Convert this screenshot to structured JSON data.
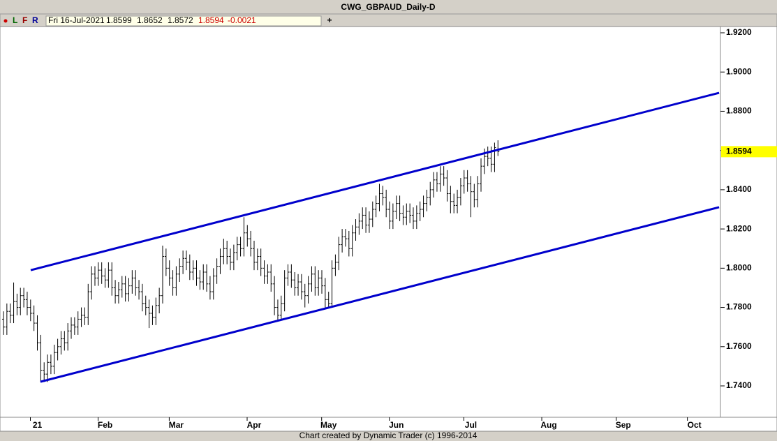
{
  "window_title": "CWG_GBPAUD_Daily-D",
  "toolbar": {
    "buttons": [
      "L",
      "F",
      "R"
    ],
    "info": {
      "date": "Fri 16-Jul-2021",
      "open": "1.8599",
      "high": "1.8652",
      "low": "1.8572",
      "close": "1.8594",
      "change": "-0.0021"
    },
    "plus": "+"
  },
  "footer": "Chart created by Dynamic Trader  (c) 1996-2014",
  "chart_data": {
    "type": "ohlc",
    "color": "#000000",
    "x": [
      0,
      1,
      2,
      3,
      4,
      5,
      6,
      7,
      8,
      9,
      10,
      11,
      12,
      13,
      14,
      15,
      16,
      17,
      18,
      19,
      20,
      21,
      22,
      23,
      24,
      25,
      26,
      27,
      28,
      29,
      30,
      31,
      32,
      33,
      34,
      35,
      36,
      37,
      38,
      39,
      40,
      41,
      42,
      43,
      44,
      45,
      46,
      47,
      48,
      49,
      50,
      51,
      52,
      53,
      54,
      55,
      56,
      57,
      58,
      59,
      60,
      61,
      62,
      63,
      64,
      65,
      66,
      67,
      68,
      69,
      70,
      71,
      72,
      73,
      74,
      75,
      76,
      77,
      78,
      79,
      80,
      81,
      82,
      83,
      84,
      85,
      86,
      87,
      88,
      89,
      90,
      91,
      92,
      93,
      94,
      95,
      96,
      97,
      98,
      99,
      100,
      101,
      102,
      103,
      104,
      105,
      106,
      107,
      108,
      109,
      110,
      111,
      112,
      113,
      114,
      115,
      116,
      117,
      118,
      119,
      120,
      121,
      122,
      123,
      124,
      125,
      126,
      127,
      128,
      129,
      130,
      131,
      132,
      133,
      134,
      135,
      136,
      137,
      138,
      139,
      140,
      141,
      142,
      143,
      144,
      145,
      146
    ],
    "open": [
      1.774,
      1.77,
      1.778,
      1.776,
      1.783,
      1.78,
      1.786,
      1.784,
      1.78,
      1.777,
      1.772,
      1.762,
      1.748,
      1.746,
      1.752,
      1.75,
      1.757,
      1.76,
      1.764,
      1.762,
      1.768,
      1.771,
      1.77,
      1.774,
      1.776,
      1.775,
      1.788,
      1.797,
      1.795,
      1.799,
      1.796,
      1.794,
      1.799,
      1.79,
      1.786,
      1.789,
      1.792,
      1.787,
      1.791,
      1.795,
      1.79,
      1.788,
      1.782,
      1.78,
      1.777,
      1.775,
      1.781,
      1.786,
      1.806,
      1.8,
      1.795,
      1.79,
      1.797,
      1.801,
      1.805,
      1.803,
      1.798,
      1.8,
      1.795,
      1.793,
      1.798,
      1.792,
      1.788,
      1.796,
      1.801,
      1.806,
      1.81,
      1.806,
      1.803,
      1.808,
      1.812,
      1.81,
      1.818,
      1.815,
      1.81,
      1.803,
      1.806,
      1.8,
      1.796,
      1.798,
      1.792,
      1.78,
      1.776,
      1.782,
      1.795,
      1.798,
      1.794,
      1.79,
      1.793,
      1.788,
      1.786,
      1.792,
      1.797,
      1.79,
      1.795,
      1.791,
      1.784,
      1.782,
      1.8,
      1.803,
      1.812,
      1.816,
      1.815,
      1.81,
      1.818,
      1.821,
      1.824,
      1.827,
      1.822,
      1.825,
      1.83,
      1.833,
      1.838,
      1.836,
      1.83,
      1.824,
      1.829,
      1.833,
      1.828,
      1.826,
      1.829,
      1.827,
      1.824,
      1.828,
      1.83,
      1.833,
      1.836,
      1.84,
      1.845,
      1.843,
      1.848,
      1.846,
      1.838,
      1.834,
      1.832,
      1.836,
      1.842,
      1.846,
      1.843,
      1.839,
      1.835,
      1.843,
      1.852,
      1.857,
      1.856,
      1.853,
      1.8599
    ],
    "high": [
      1.778,
      1.782,
      1.782,
      1.7927,
      1.787,
      1.79,
      1.79,
      1.788,
      1.784,
      1.781,
      1.776,
      1.766,
      1.752,
      1.756,
      1.756,
      1.761,
      1.764,
      1.768,
      1.768,
      1.772,
      1.775,
      1.775,
      1.778,
      1.78,
      1.78,
      1.792,
      1.801,
      1.801,
      1.803,
      1.803,
      1.8,
      1.803,
      1.803,
      1.794,
      1.793,
      1.796,
      1.796,
      1.795,
      1.799,
      1.799,
      1.794,
      1.792,
      1.786,
      1.784,
      1.781,
      1.785,
      1.79,
      1.8115,
      1.81,
      1.804,
      1.799,
      1.801,
      1.805,
      1.809,
      1.809,
      1.807,
      1.804,
      1.804,
      1.799,
      1.802,
      1.802,
      1.796,
      1.8,
      1.805,
      1.81,
      1.815,
      1.814,
      1.81,
      1.812,
      1.816,
      1.816,
      1.826,
      1.822,
      1.819,
      1.814,
      1.81,
      1.81,
      1.804,
      1.802,
      1.802,
      1.796,
      1.784,
      1.786,
      1.799,
      1.802,
      1.802,
      1.798,
      1.797,
      1.797,
      1.792,
      1.796,
      1.801,
      1.801,
      1.799,
      1.799,
      1.795,
      1.788,
      1.804,
      1.807,
      1.816,
      1.82,
      1.82,
      1.819,
      1.822,
      1.825,
      1.828,
      1.831,
      1.831,
      1.829,
      1.834,
      1.837,
      1.843,
      1.842,
      1.84,
      1.834,
      1.833,
      1.837,
      1.837,
      1.832,
      1.833,
      1.833,
      1.831,
      1.832,
      1.834,
      1.837,
      1.84,
      1.844,
      1.849,
      1.849,
      1.852,
      1.852,
      1.85,
      1.842,
      1.838,
      1.84,
      1.846,
      1.85,
      1.85,
      1.847,
      1.843,
      1.847,
      1.856,
      1.861,
      1.862,
      1.862,
      1.864,
      1.8652
    ],
    "low": [
      1.766,
      1.766,
      1.772,
      1.772,
      1.776,
      1.776,
      1.78,
      1.776,
      1.773,
      1.768,
      1.758,
      1.742,
      1.742,
      1.742,
      1.746,
      1.746,
      1.753,
      1.756,
      1.758,
      1.758,
      1.764,
      1.766,
      1.766,
      1.77,
      1.771,
      1.771,
      1.784,
      1.791,
      1.791,
      1.792,
      1.79,
      1.79,
      1.786,
      1.782,
      1.782,
      1.785,
      1.783,
      1.783,
      1.787,
      1.786,
      1.784,
      1.778,
      1.776,
      1.7695,
      1.771,
      1.771,
      1.777,
      1.782,
      1.796,
      1.791,
      1.786,
      1.786,
      1.793,
      1.797,
      1.799,
      1.794,
      1.794,
      1.791,
      1.789,
      1.789,
      1.788,
      1.784,
      1.784,
      1.792,
      1.797,
      1.802,
      1.802,
      1.799,
      1.799,
      1.804,
      1.806,
      1.806,
      1.811,
      1.806,
      1.799,
      1.799,
      1.796,
      1.792,
      1.792,
      1.788,
      1.776,
      1.7738,
      1.774,
      1.778,
      1.791,
      1.79,
      1.786,
      1.786,
      1.784,
      1.78,
      1.782,
      1.788,
      1.786,
      1.786,
      1.787,
      1.78,
      1.78,
      1.78,
      1.796,
      1.799,
      1.808,
      1.811,
      1.806,
      1.806,
      1.814,
      1.817,
      1.82,
      1.818,
      1.818,
      1.821,
      1.826,
      1.829,
      1.832,
      1.826,
      1.82,
      1.82,
      1.825,
      1.824,
      1.822,
      1.822,
      1.823,
      1.82,
      1.82,
      1.824,
      1.826,
      1.829,
      1.832,
      1.836,
      1.839,
      1.839,
      1.842,
      1.834,
      1.828,
      1.828,
      1.828,
      1.832,
      1.838,
      1.839,
      1.826,
      1.831,
      1.831,
      1.839,
      1.848,
      1.852,
      1.849,
      1.849,
      1.8572
    ],
    "close": [
      1.77,
      1.778,
      1.776,
      1.783,
      1.78,
      1.786,
      1.784,
      1.78,
      1.777,
      1.772,
      1.762,
      1.748,
      1.746,
      1.752,
      1.75,
      1.757,
      1.76,
      1.764,
      1.762,
      1.768,
      1.771,
      1.77,
      1.774,
      1.776,
      1.775,
      1.788,
      1.797,
      1.795,
      1.799,
      1.796,
      1.794,
      1.799,
      1.79,
      1.786,
      1.789,
      1.792,
      1.787,
      1.791,
      1.795,
      1.79,
      1.788,
      1.782,
      1.78,
      1.777,
      1.775,
      1.781,
      1.786,
      1.806,
      1.8,
      1.795,
      1.79,
      1.797,
      1.801,
      1.805,
      1.803,
      1.798,
      1.8,
      1.795,
      1.793,
      1.798,
      1.792,
      1.788,
      1.796,
      1.801,
      1.806,
      1.81,
      1.806,
      1.803,
      1.808,
      1.812,
      1.81,
      1.818,
      1.815,
      1.81,
      1.803,
      1.806,
      1.8,
      1.796,
      1.798,
      1.792,
      1.78,
      1.776,
      1.782,
      1.795,
      1.798,
      1.794,
      1.79,
      1.793,
      1.788,
      1.786,
      1.792,
      1.797,
      1.79,
      1.795,
      1.791,
      1.784,
      1.782,
      1.8,
      1.803,
      1.812,
      1.816,
      1.815,
      1.81,
      1.818,
      1.821,
      1.824,
      1.827,
      1.822,
      1.825,
      1.83,
      1.833,
      1.838,
      1.836,
      1.83,
      1.824,
      1.829,
      1.833,
      1.828,
      1.826,
      1.829,
      1.827,
      1.824,
      1.828,
      1.83,
      1.833,
      1.836,
      1.84,
      1.845,
      1.843,
      1.848,
      1.846,
      1.838,
      1.834,
      1.832,
      1.836,
      1.842,
      1.846,
      1.843,
      1.839,
      1.835,
      1.843,
      1.852,
      1.857,
      1.856,
      1.853,
      1.8615,
      1.8594
    ],
    "xlim": [
      -1.03,
      211.7
    ],
    "xticks": [
      {
        "value": 10,
        "label": "21"
      },
      {
        "value": 30,
        "label": "Feb"
      },
      {
        "value": 51,
        "label": "Mar"
      },
      {
        "value": 74,
        "label": "Apr"
      },
      {
        "value": 96,
        "label": "May"
      },
      {
        "value": 116,
        "label": "Jun"
      },
      {
        "value": 138,
        "label": "Jul"
      },
      {
        "value": 161,
        "label": "Aug"
      },
      {
        "value": 183,
        "label": "Sep"
      },
      {
        "value": 204,
        "label": "Oct"
      }
    ],
    "ylim": [
      1.724,
      1.9232
    ],
    "yticks": [
      {
        "value": 1.92,
        "label": "1.9200"
      },
      {
        "value": 1.9,
        "label": "1.9000"
      },
      {
        "value": 1.88,
        "label": "1.8800"
      },
      {
        "value": 1.86,
        "label": "1.8600"
      },
      {
        "value": 1.84,
        "label": "1.8400"
      },
      {
        "value": 1.82,
        "label": "1.8200"
      },
      {
        "value": 1.8,
        "label": "1.8000"
      },
      {
        "value": 1.78,
        "label": "1.7800"
      },
      {
        "value": 1.76,
        "label": "1.7600"
      },
      {
        "value": 1.74,
        "label": "1.7400"
      }
    ],
    "last_value": {
      "value": 1.8594,
      "label": "1.8594"
    },
    "trendline_color": "#0000cc",
    "trendlines": [
      {
        "x": [
          8.04,
          211.3
        ],
        "y": [
          1.799,
          1.8894
        ]
      },
      {
        "x": [
          10.9,
          211.3
        ],
        "y": [
          1.7421,
          1.8311
        ]
      }
    ]
  }
}
